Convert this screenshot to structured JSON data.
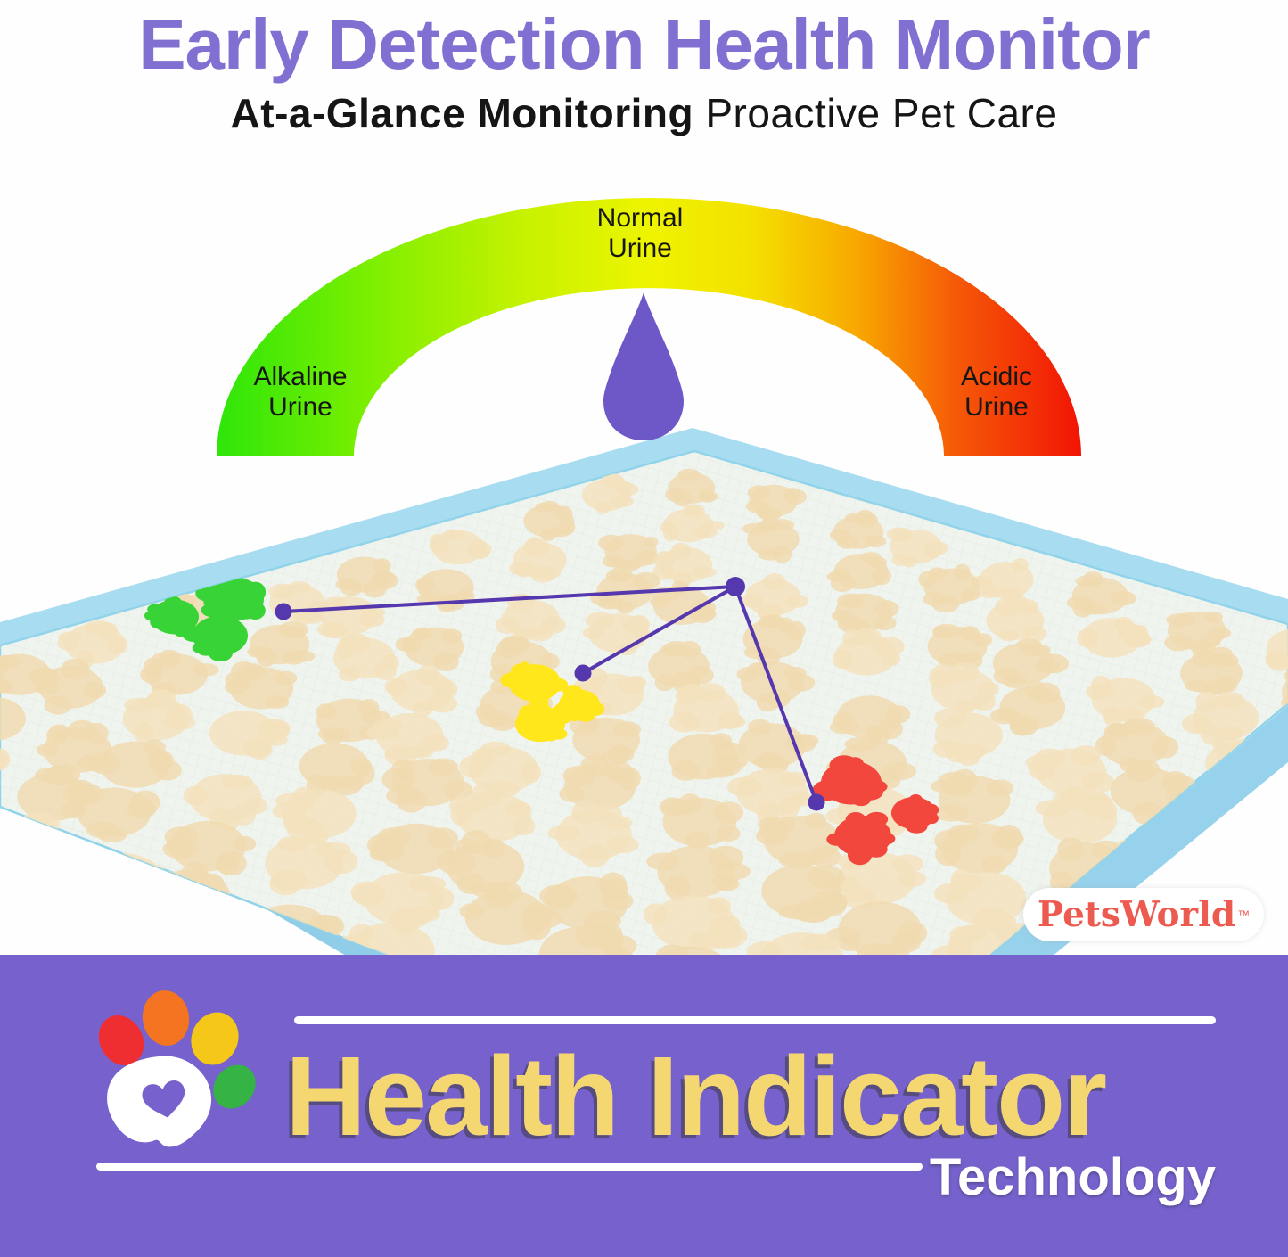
{
  "header": {
    "title": "Early Detection Health Monitor",
    "subtitle_bold": "At-a-Glance Monitoring",
    "subtitle_regular": " Proactive Pet Care"
  },
  "gauge": {
    "label_left": "Alkaline\nUrine",
    "label_center": "Normal\nUrine",
    "label_right": "Acidic\nUrine"
  },
  "brand": {
    "name": "PetsWorld",
    "tm": "™"
  },
  "footer": {
    "heading": "Health Indicator",
    "subheading": "Technology"
  },
  "diagram": {
    "type": "semicircular-gauge-infographic",
    "gauge_zones": [
      {
        "label": "Alkaline Urine",
        "color_name": "green",
        "hex": "#2ee60a"
      },
      {
        "label": "Normal Urine",
        "color_name": "yellow",
        "hex": "#eef400"
      },
      {
        "label": "Acidic Urine",
        "color_name": "red",
        "hex": "#f21404"
      }
    ],
    "pad_indicator_spots": [
      {
        "color_name": "green",
        "hex": "#38d337"
      },
      {
        "color_name": "yellow",
        "hex": "#ffe71c"
      },
      {
        "color_name": "red",
        "hex": "#f2473c"
      }
    ],
    "pointer": "purple-droplet"
  },
  "colors": {
    "title_purple": "#8170d2",
    "footer_bg": "#7762cd",
    "heading_yellow": "#f5d772",
    "drop_purple": "#6e58c8",
    "connector_purple": "#5537ae",
    "pad_border_blue": "#a8ddf1",
    "pad_surface": "#f0f4ee",
    "pad_spot_tan": "#f0dbb0",
    "splotch_green": "#38d337",
    "splotch_yellow": "#ffe71c",
    "splotch_red": "#f2473c",
    "brand_red": "#ed5a50",
    "gauge_gradient": [
      "#2ee60a",
      "#7def00",
      "#c8f200",
      "#eef400",
      "#f4e000",
      "#f8a800",
      "#f55708",
      "#f21404"
    ]
  }
}
